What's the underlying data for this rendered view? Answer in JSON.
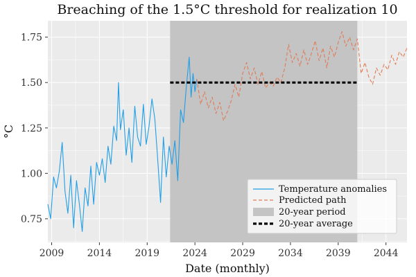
{
  "chart_data": {
    "type": "line",
    "title": "Breaching of the 1.5°C threshold for realization 10",
    "xlabel": "Date (monthly)",
    "ylabel": "°C",
    "xlim": [
      2008.6,
      2046.2
    ],
    "ylim": [
      0.62,
      1.84
    ],
    "x_ticks": [
      2009,
      2014,
      2019,
      2024,
      2029,
      2034,
      2039,
      2044
    ],
    "y_ticks": [
      0.75,
      1.0,
      1.25,
      1.5,
      1.75
    ],
    "y_tick_labels": [
      "0.75",
      "1.00",
      "1.25",
      "1.50",
      "1.75"
    ],
    "grid": true,
    "legend_position": "bottom-right",
    "colors": {
      "background": "#ebebeb",
      "grid": "#ffffff",
      "observed": "#1f9ee8",
      "predicted": "#e07b54",
      "period": "#c4c4c4",
      "average": "#000000"
    },
    "series": [
      {
        "name": "Temperature anomalies",
        "style": "solid",
        "x": [
          2008.6,
          2008.9,
          2009.2,
          2009.5,
          2009.8,
          2010.1,
          2010.4,
          2010.7,
          2011.0,
          2011.3,
          2011.6,
          2011.9,
          2012.2,
          2012.5,
          2012.8,
          2013.1,
          2013.4,
          2013.7,
          2014.0,
          2014.3,
          2014.6,
          2014.9,
          2015.2,
          2015.5,
          2015.8,
          2016.0,
          2016.2,
          2016.5,
          2016.8,
          2017.1,
          2017.4,
          2017.7,
          2018.0,
          2018.3,
          2018.6,
          2018.9,
          2019.2,
          2019.5,
          2019.8,
          2020.1,
          2020.4,
          2020.7,
          2021.0,
          2021.3,
          2021.6,
          2021.9,
          2022.2,
          2022.5,
          2022.8,
          2023.1,
          2023.4,
          2023.6,
          2023.8,
          2024.0,
          2024.2
        ],
        "values": [
          0.83,
          0.75,
          0.98,
          0.92,
          1.01,
          1.17,
          0.9,
          0.78,
          0.99,
          0.7,
          0.96,
          0.83,
          0.68,
          0.92,
          0.82,
          1.04,
          0.83,
          1.06,
          0.99,
          1.08,
          0.95,
          1.15,
          1.05,
          1.26,
          1.18,
          1.5,
          1.24,
          1.35,
          1.1,
          1.25,
          1.06,
          1.37,
          1.2,
          1.15,
          1.38,
          1.16,
          1.26,
          1.41,
          1.3,
          1.08,
          0.84,
          1.2,
          0.98,
          1.15,
          1.05,
          1.18,
          0.96,
          1.35,
          1.28,
          1.48,
          1.64,
          1.42,
          1.55,
          1.45,
          1.52
        ]
      },
      {
        "name": "Predicted path",
        "style": "dashed",
        "x": [
          2024.2,
          2024.6,
          2025.0,
          2025.4,
          2025.8,
          2026.2,
          2026.6,
          2027.0,
          2027.4,
          2027.8,
          2028.2,
          2028.6,
          2029.0,
          2029.4,
          2029.8,
          2030.2,
          2030.6,
          2031.0,
          2031.4,
          2031.8,
          2032.2,
          2032.6,
          2033.0,
          2033.4,
          2033.8,
          2034.2,
          2034.6,
          2035.0,
          2035.4,
          2035.8,
          2036.2,
          2036.6,
          2037.0,
          2037.4,
          2037.8,
          2038.2,
          2038.6,
          2039.0,
          2039.4,
          2039.8,
          2040.2,
          2040.6,
          2041.0,
          2041.4,
          2041.8,
          2042.2,
          2042.6,
          2043.0,
          2043.4,
          2043.8,
          2044.2,
          2044.6,
          2045.0,
          2045.4,
          2045.8,
          2046.2
        ],
        "values": [
          1.52,
          1.38,
          1.45,
          1.36,
          1.42,
          1.33,
          1.39,
          1.29,
          1.34,
          1.4,
          1.49,
          1.42,
          1.55,
          1.61,
          1.52,
          1.58,
          1.49,
          1.56,
          1.47,
          1.5,
          1.48,
          1.53,
          1.5,
          1.58,
          1.71,
          1.61,
          1.66,
          1.59,
          1.68,
          1.6,
          1.66,
          1.73,
          1.62,
          1.69,
          1.58,
          1.7,
          1.64,
          1.72,
          1.78,
          1.7,
          1.75,
          1.68,
          1.74,
          1.55,
          1.61,
          1.53,
          1.49,
          1.58,
          1.54,
          1.6,
          1.57,
          1.65,
          1.6,
          1.67,
          1.64,
          1.69
        ]
      }
    ],
    "period": {
      "name": "20-year period",
      "x_start": 2021.4,
      "x_end": 2041.0
    },
    "average": {
      "name": "20-year average",
      "x_start": 2021.4,
      "x_end": 2041.0,
      "value": 1.5
    },
    "legend": [
      "Temperature anomalies",
      "Predicted path",
      "20-year period",
      "20-year average"
    ]
  }
}
